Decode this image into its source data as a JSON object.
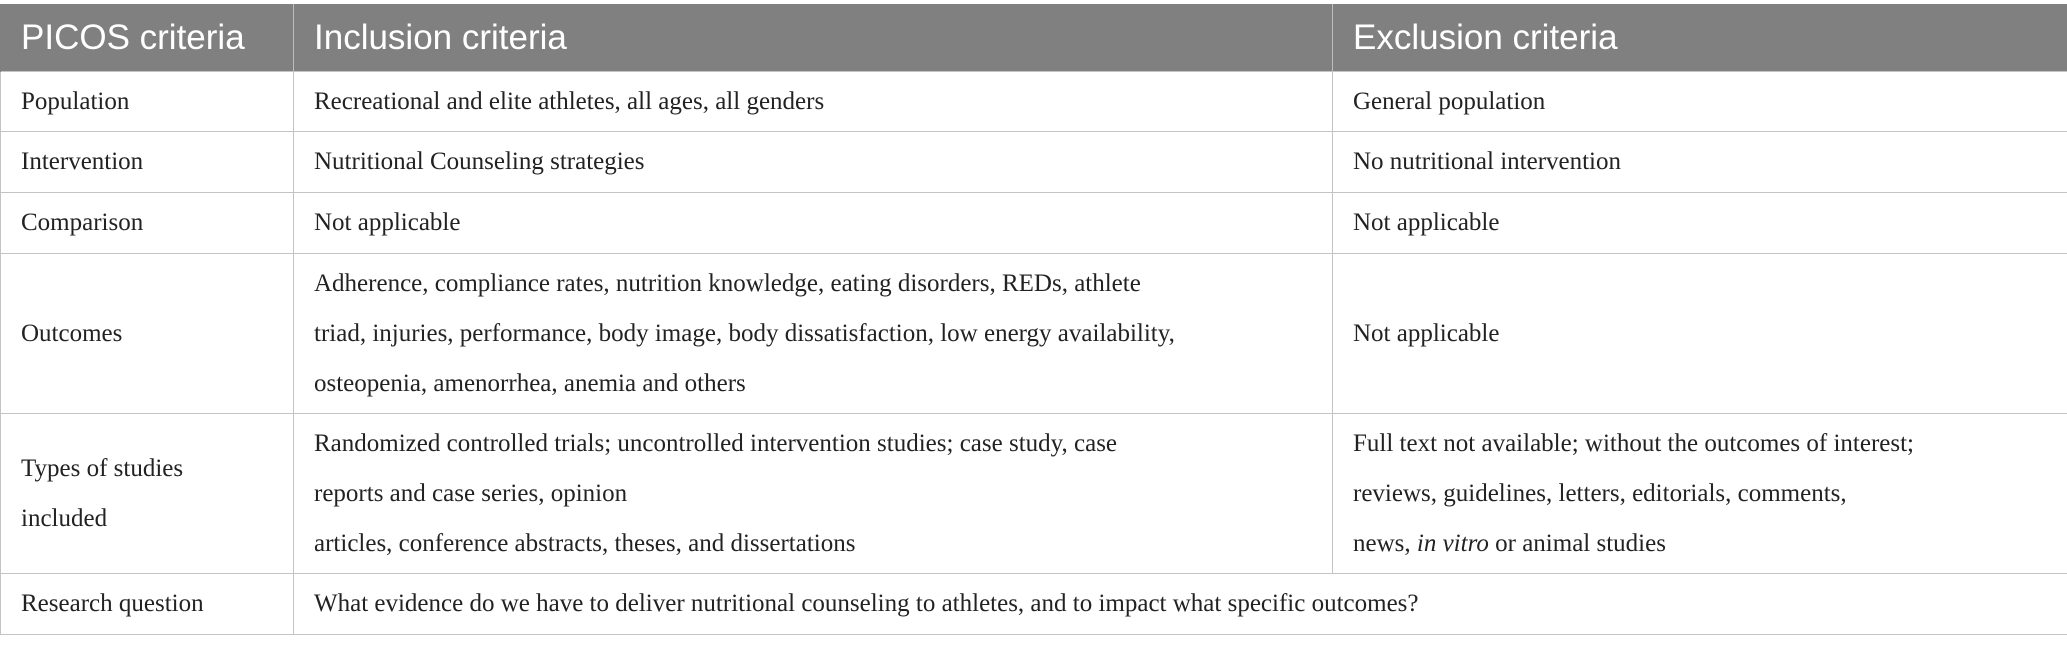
{
  "header": {
    "col1": "PICOS criteria",
    "col2": "Inclusion criteria",
    "col3": "Exclusion criteria"
  },
  "rows": [
    {
      "criteria": "Population",
      "inclusion": "Recreational and elite athletes, all ages, all genders",
      "exclusion": "General population"
    },
    {
      "criteria": "Intervention",
      "inclusion": "Nutritional Counseling strategies",
      "exclusion": "No nutritional intervention"
    },
    {
      "criteria": "Comparison",
      "inclusion": "Not applicable",
      "exclusion": "Not applicable"
    },
    {
      "criteria": "Outcomes",
      "inclusion_lines": [
        "Adherence, compliance rates, nutrition knowledge, eating disorders, REDs, athlete",
        "triad, injuries, performance, body image, body dissatisfaction, low energy availability,",
        "osteopenia, amenorrhea, anemia and others"
      ],
      "exclusion": "Not applicable"
    },
    {
      "criteria_lines": [
        "Types of studies",
        "included"
      ],
      "inclusion_lines": [
        "Randomized controlled trials; uncontrolled intervention studies; case study, case",
        "reports and case series, opinion",
        "articles, conference abstracts, theses, and dissertations"
      ],
      "exclusion_lines": [
        "Full text not available; without the outcomes of interest;",
        "reviews, guidelines, letters, editorials, comments,"
      ],
      "exclusion_last": {
        "before": "news, ",
        "italic": "in vitro",
        "after": " or animal studies"
      }
    },
    {
      "criteria": "Research question",
      "question": "What evidence do we have to deliver nutritional counseling to athletes, and to impact what specific outcomes?"
    }
  ]
}
